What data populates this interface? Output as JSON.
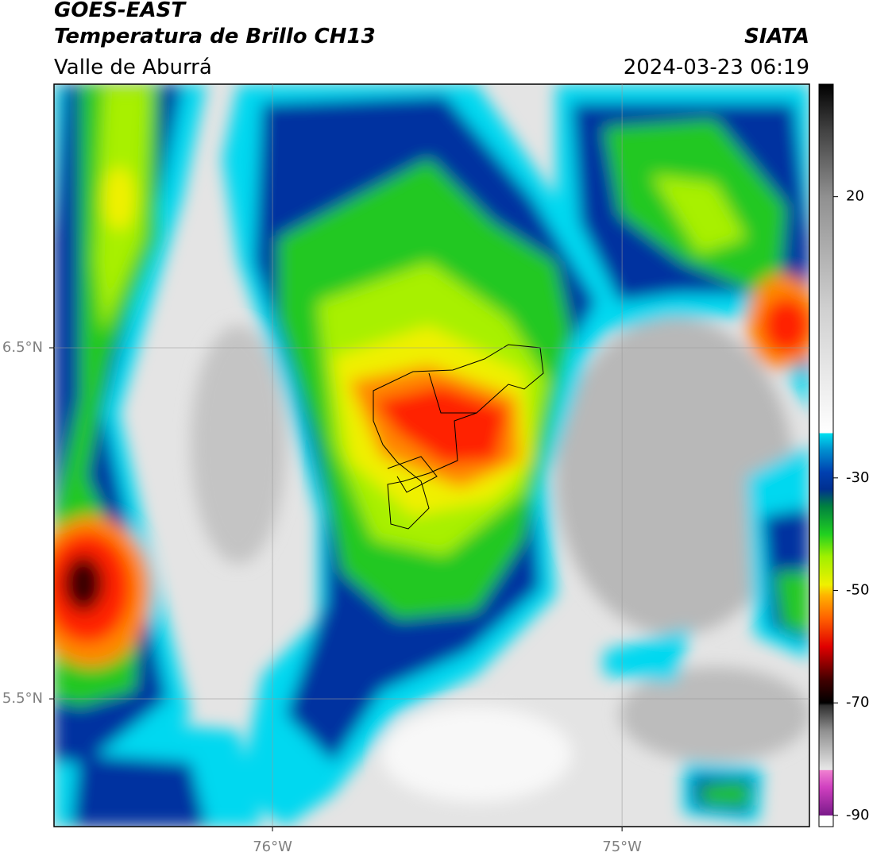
{
  "header": {
    "title": "GOES-EAST",
    "subtitle": "Temperatura de Brillo CH13",
    "region": "Valle de Aburrá",
    "source": "SIATA",
    "datetime": "2024-03-23 06:19"
  },
  "map": {
    "xlim": [
      -76.625,
      -74.464
    ],
    "ylim": [
      5.136,
      7.251
    ],
    "xticks": [
      {
        "value": -76,
        "label": "76°W"
      },
      {
        "value": -75,
        "label": "75°W"
      }
    ],
    "yticks": [
      {
        "value": 6.5,
        "label": "6.5°N"
      },
      {
        "value": 5.5,
        "label": "5.5°N"
      }
    ],
    "grid": true
  },
  "colorbar": {
    "lim": [
      -92,
      40
    ],
    "ticks": [
      20,
      -30,
      -50,
      -70,
      -90
    ],
    "colormap": [
      {
        "value": -92,
        "color": "#ffffff"
      },
      {
        "value": -90.01,
        "color": "#ffffff"
      },
      {
        "value": -90,
        "color": "#7a1a8a"
      },
      {
        "value": -85,
        "color": "#d040c0"
      },
      {
        "value": -82,
        "color": "#f080d0"
      },
      {
        "value": -81.9,
        "color": "#e8e8e8"
      },
      {
        "value": -75,
        "color": "#909090"
      },
      {
        "value": -70.5,
        "color": "#303030"
      },
      {
        "value": -70,
        "color": "#000000"
      },
      {
        "value": -66,
        "color": "#400000"
      },
      {
        "value": -60,
        "color": "#e00000"
      },
      {
        "value": -55,
        "color": "#ff6000"
      },
      {
        "value": -51,
        "color": "#ffb000"
      },
      {
        "value": -49,
        "color": "#f0f000"
      },
      {
        "value": -44,
        "color": "#a0f000"
      },
      {
        "value": -40,
        "color": "#20d020"
      },
      {
        "value": -35,
        "color": "#008040"
      },
      {
        "value": -32,
        "color": "#003090"
      },
      {
        "value": -29,
        "color": "#0040b0"
      },
      {
        "value": -25,
        "color": "#0090d0"
      },
      {
        "value": -22.1,
        "color": "#00e0f0"
      },
      {
        "value": -22,
        "color": "#ffffff"
      },
      {
        "value": 0,
        "color": "#d0d0d0"
      },
      {
        "value": 20,
        "color": "#909090"
      },
      {
        "value": 32,
        "color": "#404040"
      },
      {
        "value": 40,
        "color": "#000000"
      }
    ]
  }
}
